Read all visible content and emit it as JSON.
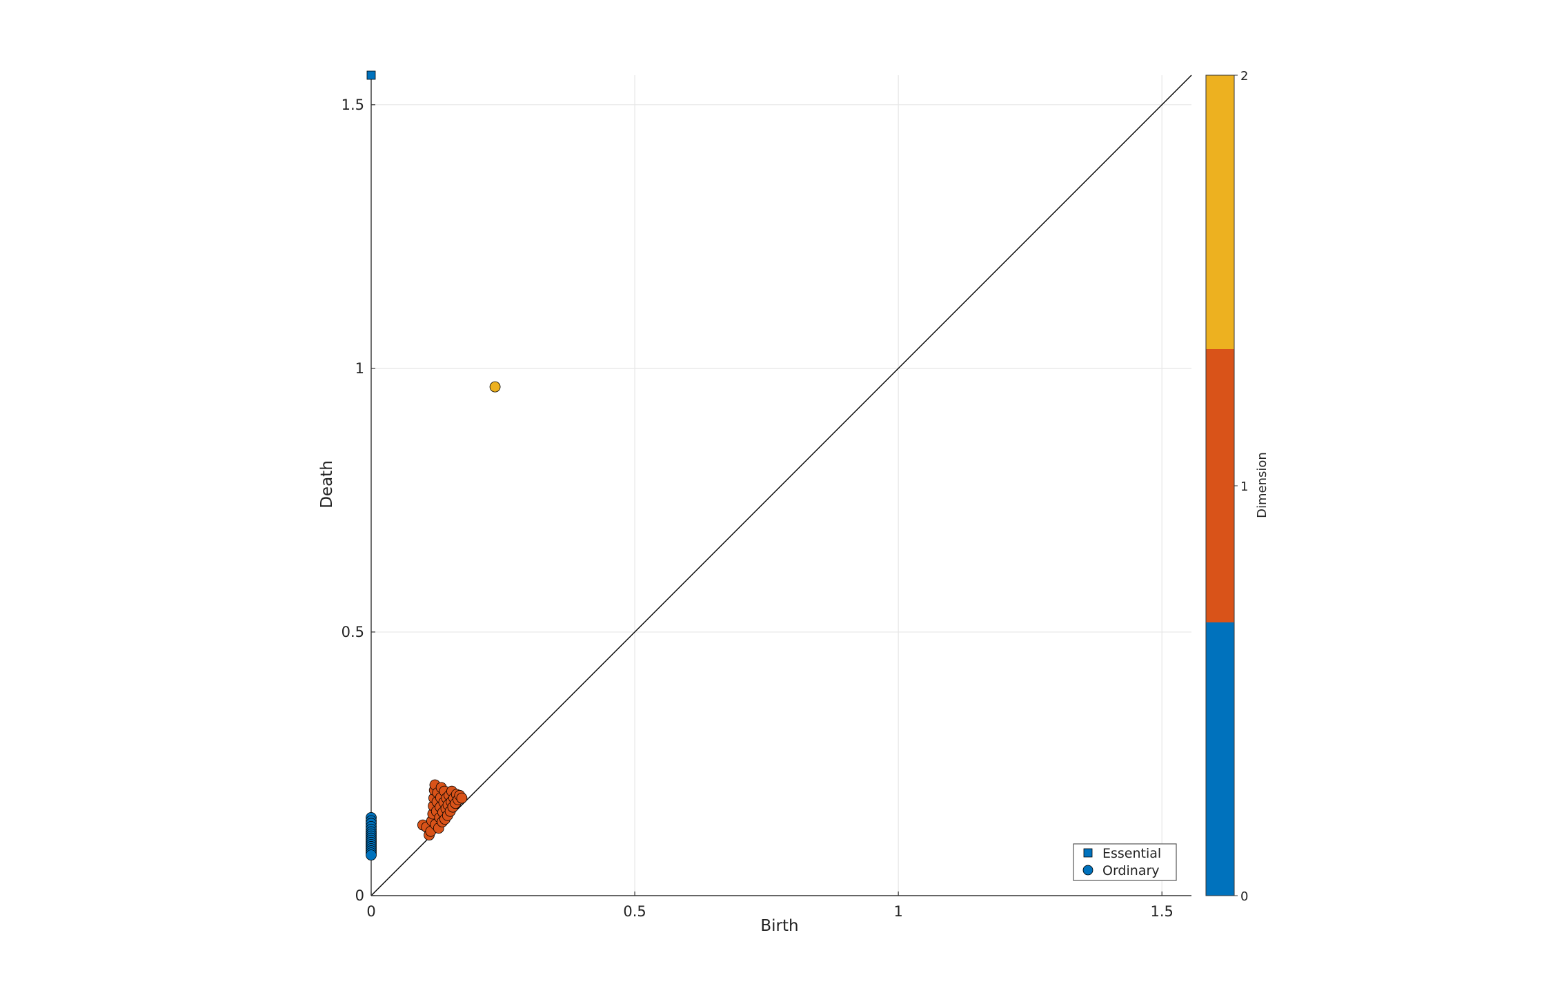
{
  "chart_data": {
    "type": "scatter",
    "title": "",
    "xlabel": "Birth",
    "ylabel": "Death",
    "xlim": [
      0,
      1.556
    ],
    "ylim": [
      0,
      1.556
    ],
    "x_ticks": [
      0,
      0.5,
      1,
      1.5
    ],
    "y_ticks": [
      0,
      0.5,
      1,
      1.5
    ],
    "x_tick_labels": [
      "0",
      "0.5",
      "1",
      "1.5"
    ],
    "y_tick_labels": [
      "0",
      "0.5",
      "1",
      "1.5"
    ],
    "grid": true,
    "diagonal": true,
    "legend_position": "bottom-right",
    "legend": [
      {
        "label": "Essential",
        "marker": "square"
      },
      {
        "label": "Ordinary",
        "marker": "circle"
      }
    ],
    "colorbar": {
      "label": "Dimension",
      "ticks": [
        "0",
        "1",
        "2"
      ],
      "colors": [
        "#0072bd",
        "#d95319",
        "#edb120"
      ]
    },
    "series": [
      {
        "dimension": 0,
        "marker": "square",
        "color": "#0072bd",
        "points": [
          [
            0,
            1.556
          ]
        ]
      },
      {
        "dimension": 0,
        "marker": "circle",
        "color": "#0072bd",
        "points": [
          [
            0,
            0.148
          ],
          [
            0,
            0.142
          ],
          [
            0,
            0.137
          ],
          [
            0,
            0.131
          ],
          [
            0,
            0.126
          ],
          [
            0,
            0.121
          ],
          [
            0,
            0.117
          ],
          [
            0,
            0.113
          ],
          [
            0,
            0.109
          ],
          [
            0,
            0.105
          ],
          [
            0,
            0.101
          ],
          [
            0,
            0.097
          ],
          [
            0,
            0.093
          ],
          [
            0,
            0.089
          ],
          [
            0,
            0.085
          ],
          [
            0,
            0.081
          ],
          [
            0,
            0.077
          ]
        ]
      },
      {
        "dimension": 1,
        "marker": "circle",
        "color": "#d95319",
        "points": [
          [
            0.098,
            0.134
          ],
          [
            0.105,
            0.13
          ],
          [
            0.11,
            0.115
          ],
          [
            0.113,
            0.122
          ],
          [
            0.115,
            0.142
          ],
          [
            0.117,
            0.155
          ],
          [
            0.118,
            0.17
          ],
          [
            0.119,
            0.185
          ],
          [
            0.12,
            0.2
          ],
          [
            0.121,
            0.21
          ],
          [
            0.122,
            0.135
          ],
          [
            0.124,
            0.16
          ],
          [
            0.125,
            0.178
          ],
          [
            0.126,
            0.195
          ],
          [
            0.128,
            0.128
          ],
          [
            0.13,
            0.148
          ],
          [
            0.131,
            0.168
          ],
          [
            0.132,
            0.186
          ],
          [
            0.133,
            0.205
          ],
          [
            0.135,
            0.14
          ],
          [
            0.136,
            0.158
          ],
          [
            0.138,
            0.177
          ],
          [
            0.139,
            0.198
          ],
          [
            0.14,
            0.145
          ],
          [
            0.142,
            0.165
          ],
          [
            0.143,
            0.185
          ],
          [
            0.145,
            0.152
          ],
          [
            0.146,
            0.172
          ],
          [
            0.148,
            0.19
          ],
          [
            0.15,
            0.16
          ],
          [
            0.152,
            0.178
          ],
          [
            0.153,
            0.198
          ],
          [
            0.155,
            0.168
          ],
          [
            0.157,
            0.185
          ],
          [
            0.16,
            0.175
          ],
          [
            0.162,
            0.192
          ],
          [
            0.165,
            0.182
          ],
          [
            0.168,
            0.19
          ],
          [
            0.172,
            0.185
          ]
        ]
      },
      {
        "dimension": 2,
        "marker": "circle",
        "color": "#edb120",
        "points": [
          [
            0.235,
            0.965
          ]
        ]
      }
    ]
  }
}
